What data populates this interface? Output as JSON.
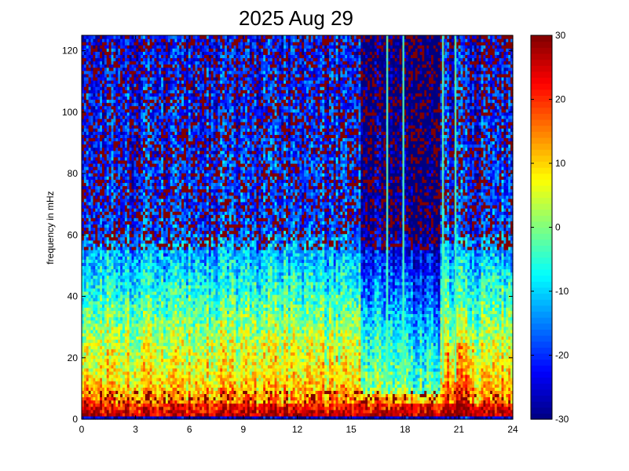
{
  "chart_data": {
    "type": "heatmap",
    "title": "2025 Aug 29",
    "xlabel": "",
    "ylabel": "frequency in mHz",
    "x_range": [
      0,
      24
    ],
    "y_range": [
      0,
      125
    ],
    "x_ticks": [
      0,
      3,
      6,
      9,
      12,
      15,
      18,
      21,
      24
    ],
    "y_ticks": [
      0,
      20,
      40,
      60,
      80,
      100,
      120
    ],
    "colorbar": {
      "range": [
        -30,
        30
      ],
      "ticks": [
        30,
        20,
        10,
        0,
        -10,
        -20,
        -30
      ],
      "colormap": "jet"
    },
    "grid": false,
    "features": {
      "low_frequency_band_max_level": 30,
      "bright_vertical_lines_hours": [
        17.0,
        17.9,
        20.1,
        20.8
      ]
    }
  }
}
